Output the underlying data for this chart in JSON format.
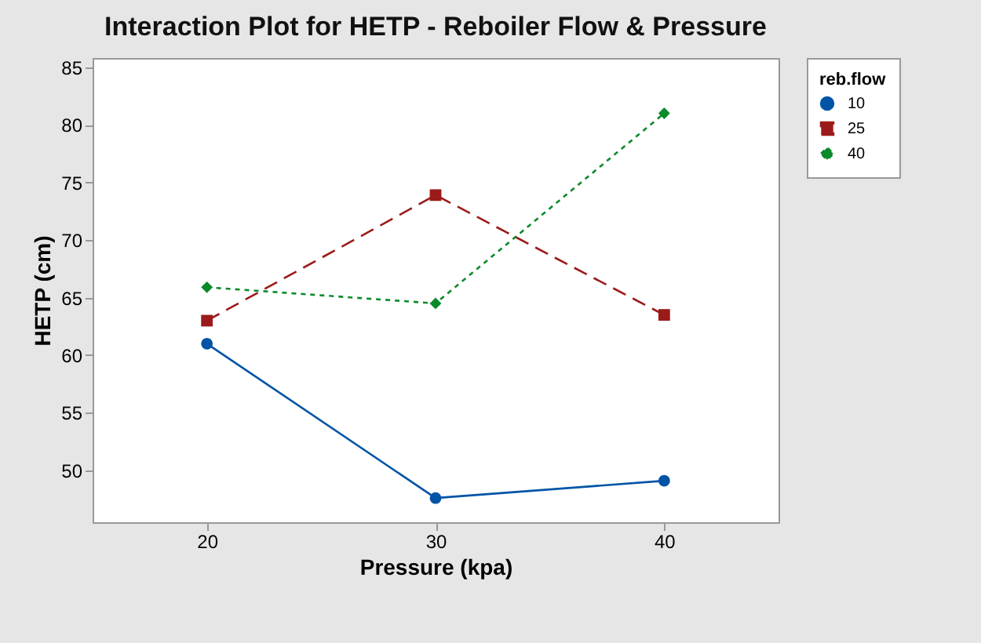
{
  "chart_data": {
    "type": "line",
    "title": "Interaction Plot for HETP - Reboiler Flow & Pressure",
    "xlabel": "Pressure (kpa)",
    "ylabel": "HETP (cm)",
    "legend_title": "reb.flow",
    "legend": "right",
    "grid": false,
    "x": [
      20,
      30,
      40
    ],
    "xlim": [
      15,
      45
    ],
    "xticks": [
      20,
      30,
      40
    ],
    "ylim": [
      45.5,
      85.8
    ],
    "yticks": [
      50,
      55,
      60,
      65,
      70,
      75,
      80,
      85
    ],
    "series": [
      {
        "name": "10",
        "color": "#0054a6",
        "values": [
          61.0,
          47.6,
          49.1
        ],
        "marker": "circle",
        "line_style": "solid"
      },
      {
        "name": "25",
        "color": "#9b1b1b",
        "values": [
          63.0,
          73.9,
          63.5
        ],
        "marker": "square",
        "line_style": "dashed"
      },
      {
        "name": "40",
        "color": "#0a8a2a",
        "values": [
          65.9,
          64.5,
          81.0
        ],
        "marker": "diamond",
        "line_style": "dotted"
      }
    ]
  }
}
